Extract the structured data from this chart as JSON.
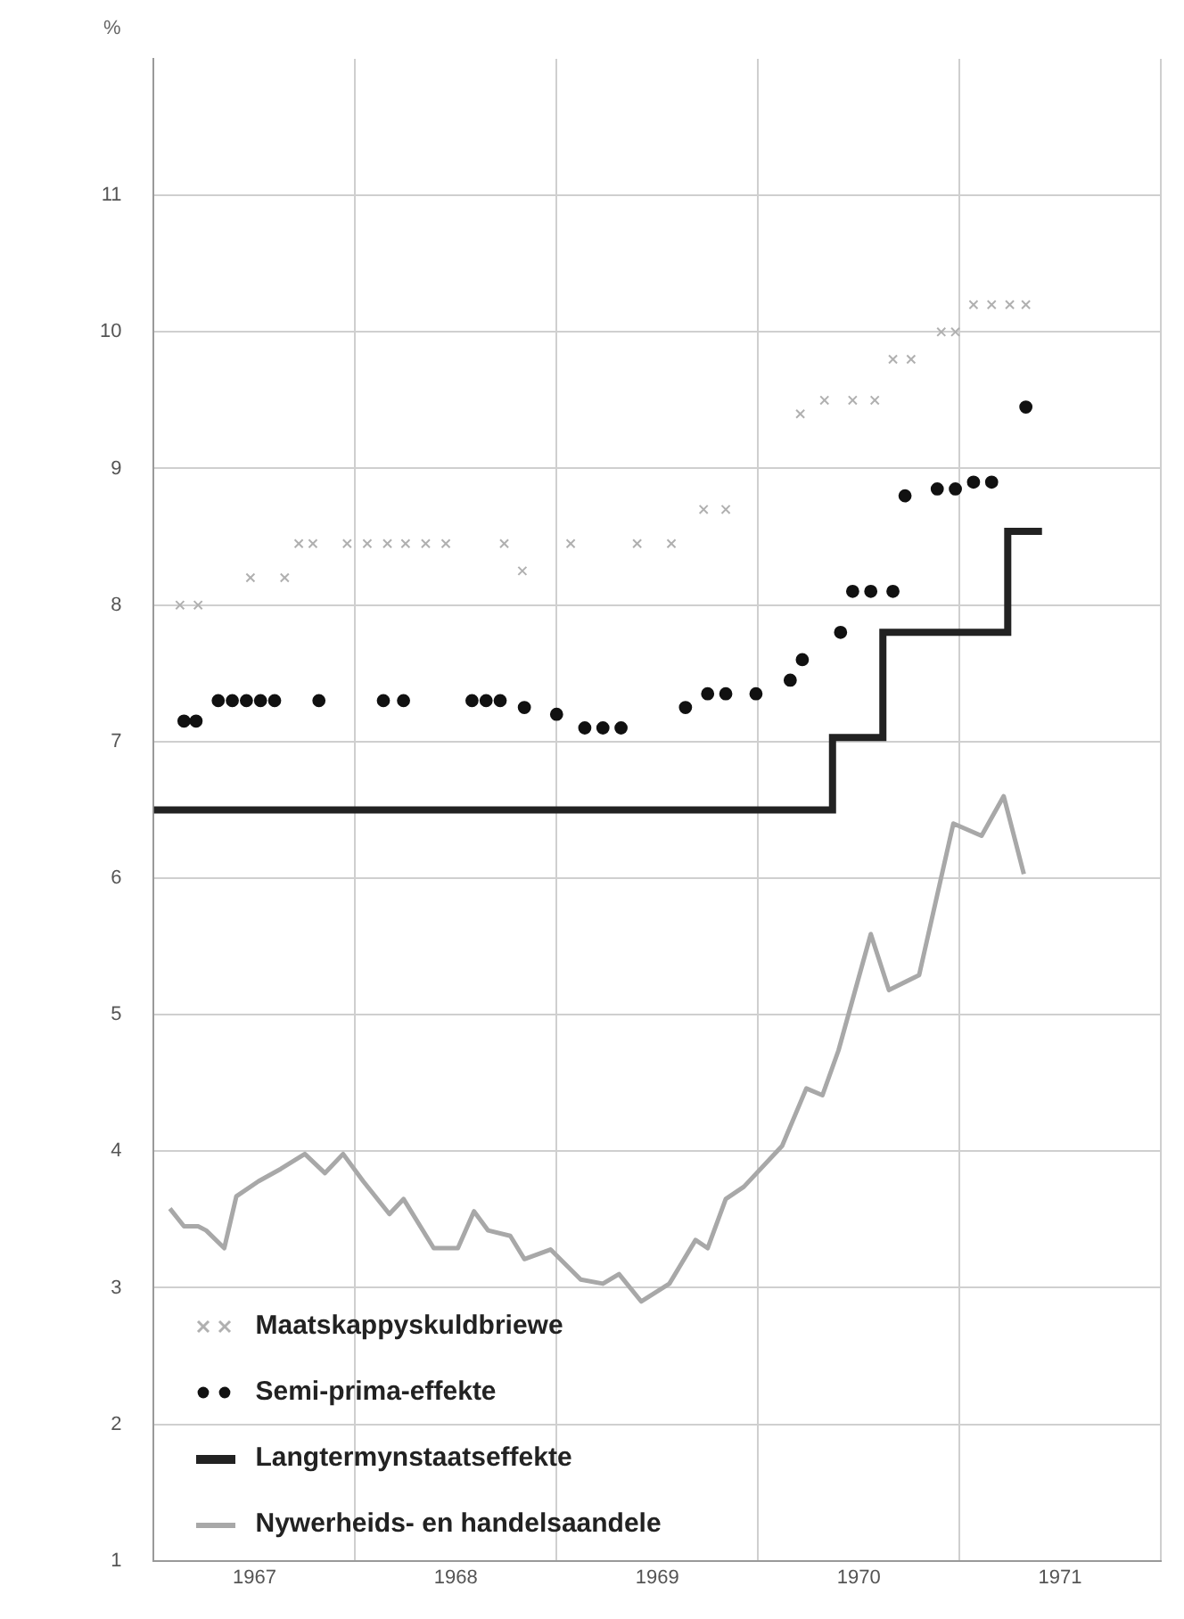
{
  "chart_data": {
    "type": "scatter",
    "ylabel": "%",
    "xlim": [
      1967,
      1972
    ],
    "ylim": [
      1,
      12
    ],
    "xticks": [
      {
        "value": 1967,
        "label": null
      },
      {
        "value": 1967.5,
        "label": "1967"
      },
      {
        "value": 1968,
        "label": null
      },
      {
        "value": 1968.5,
        "label": "1968"
      },
      {
        "value": 1969,
        "label": null
      },
      {
        "value": 1969.5,
        "label": "1969"
      },
      {
        "value": 1970,
        "label": null
      },
      {
        "value": 1970.5,
        "label": "1970"
      },
      {
        "value": 1971,
        "label": null
      },
      {
        "value": 1971.5,
        "label": "1971"
      },
      {
        "value": 1972,
        "label": null
      }
    ],
    "yticks": [
      1,
      2,
      3,
      4,
      5,
      6,
      7,
      8,
      9,
      10,
      11
    ],
    "grid": true,
    "legend": "bottom left",
    "series": [
      {
        "name": "Maatskappyskuldbriewe",
        "marker": "cross",
        "color": "#b0b0b0",
        "x": [
          1967.13,
          1967.22,
          1967.48,
          1967.65,
          1967.72,
          1967.79,
          1967.96,
          1968.06,
          1968.16,
          1968.25,
          1968.35,
          1968.45,
          1968.74,
          1968.83,
          1969.07,
          1969.4,
          1969.57,
          1969.73,
          1969.84,
          1970.21,
          1970.33,
          1970.47,
          1970.58,
          1970.67,
          1970.76,
          1970.91,
          1970.98,
          1971.07,
          1971.16,
          1971.25,
          1971.33
        ],
        "values": [
          8.0,
          8.0,
          8.2,
          8.2,
          8.45,
          8.45,
          8.45,
          8.45,
          8.45,
          8.45,
          8.45,
          8.45,
          8.45,
          8.25,
          8.45,
          8.45,
          8.45,
          8.7,
          8.7,
          9.4,
          9.5,
          9.5,
          9.5,
          9.8,
          9.8,
          10.0,
          10.0,
          10.2,
          10.2,
          10.2,
          10.2
        ]
      },
      {
        "name": "Semi-prima-effekte",
        "marker": "circle",
        "color": "#111111",
        "x": [
          1967.15,
          1967.21,
          1967.32,
          1967.39,
          1967.46,
          1967.53,
          1967.6,
          1967.82,
          1968.14,
          1968.24,
          1968.58,
          1968.65,
          1968.72,
          1968.84,
          1969.0,
          1969.14,
          1969.23,
          1969.32,
          1969.64,
          1969.75,
          1969.84,
          1969.99,
          1970.16,
          1970.22,
          1970.41,
          1970.47,
          1970.56,
          1970.67,
          1970.73,
          1970.89,
          1970.98,
          1971.07,
          1971.16,
          1971.33
        ],
        "values": [
          7.15,
          7.15,
          7.3,
          7.3,
          7.3,
          7.3,
          7.3,
          7.3,
          7.3,
          7.3,
          7.3,
          7.3,
          7.3,
          7.25,
          7.2,
          7.1,
          7.1,
          7.1,
          7.25,
          7.35,
          7.35,
          7.35,
          7.45,
          7.6,
          7.8,
          8.1,
          8.1,
          8.1,
          8.8,
          8.85,
          8.85,
          8.9,
          8.9,
          9.45
        ]
      },
      {
        "name": "Langtermynstaatseffekte",
        "type": "step",
        "marker": "none",
        "color": "#222222",
        "x": [
          1967,
          1970.37,
          1970.62,
          1971.24,
          1971.41
        ],
        "values": [
          6.5,
          7.03,
          7.8,
          8.54,
          8.54
        ]
      },
      {
        "name": "Nywerheids- en handelsaandele",
        "type": "line",
        "marker": "none",
        "color": "#a8a8a8",
        "x": [
          1967.08,
          1967.15,
          1967.22,
          1967.26,
          1967.35,
          1967.41,
          1967.52,
          1967.63,
          1967.75,
          1967.85,
          1967.94,
          1968.04,
          1968.17,
          1968.24,
          1968.39,
          1968.51,
          1968.59,
          1968.66,
          1968.77,
          1968.84,
          1968.97,
          1969.12,
          1969.23,
          1969.31,
          1969.42,
          1969.56,
          1969.69,
          1969.75,
          1969.84,
          1969.93,
          1970.12,
          1970.24,
          1970.32,
          1970.4,
          1970.56,
          1970.65,
          1970.8,
          1970.97,
          1971.11,
          1971.22,
          1971.32
        ],
        "values": [
          3.58,
          3.45,
          3.45,
          3.42,
          3.29,
          3.67,
          3.78,
          3.87,
          3.98,
          3.84,
          3.98,
          3.78,
          3.54,
          3.65,
          3.29,
          3.29,
          3.56,
          3.42,
          3.38,
          3.21,
          3.28,
          3.06,
          3.03,
          3.1,
          2.9,
          3.03,
          3.35,
          3.29,
          3.65,
          3.74,
          4.04,
          4.46,
          4.41,
          4.74,
          5.59,
          5.18,
          5.29,
          6.4,
          6.31,
          6.6,
          6.03
        ]
      }
    ]
  }
}
